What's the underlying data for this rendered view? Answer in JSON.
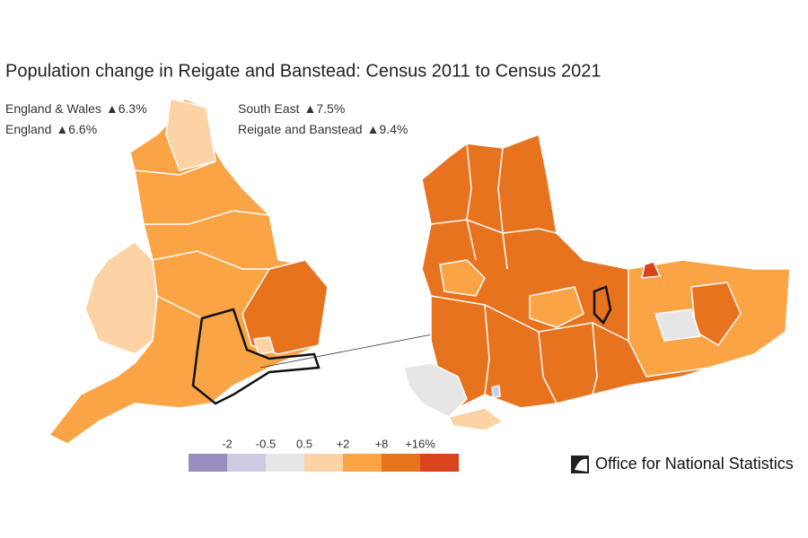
{
  "title": "Population change in Reigate and Banstead: Census 2011 to Census 2021",
  "summary": [
    {
      "name": "England & Wales",
      "change": "▲6.3%"
    },
    {
      "name": "England",
      "change": "▲6.6%"
    },
    {
      "name": "South East",
      "change": "▲7.5%"
    },
    {
      "name": "Reigate and Banstead",
      "change": "▲9.4%"
    }
  ],
  "legend": {
    "labels": [
      "-2",
      "-0.5",
      "0.5",
      "+2",
      "+8",
      "+16%"
    ],
    "colors": [
      "#9a8dc0",
      "#cfc9e3",
      "#e6e6e6",
      "#fdd3a5",
      "#fba446",
      "#e8731f",
      "#d9441c"
    ]
  },
  "logo": "Office for National Statistics"
}
